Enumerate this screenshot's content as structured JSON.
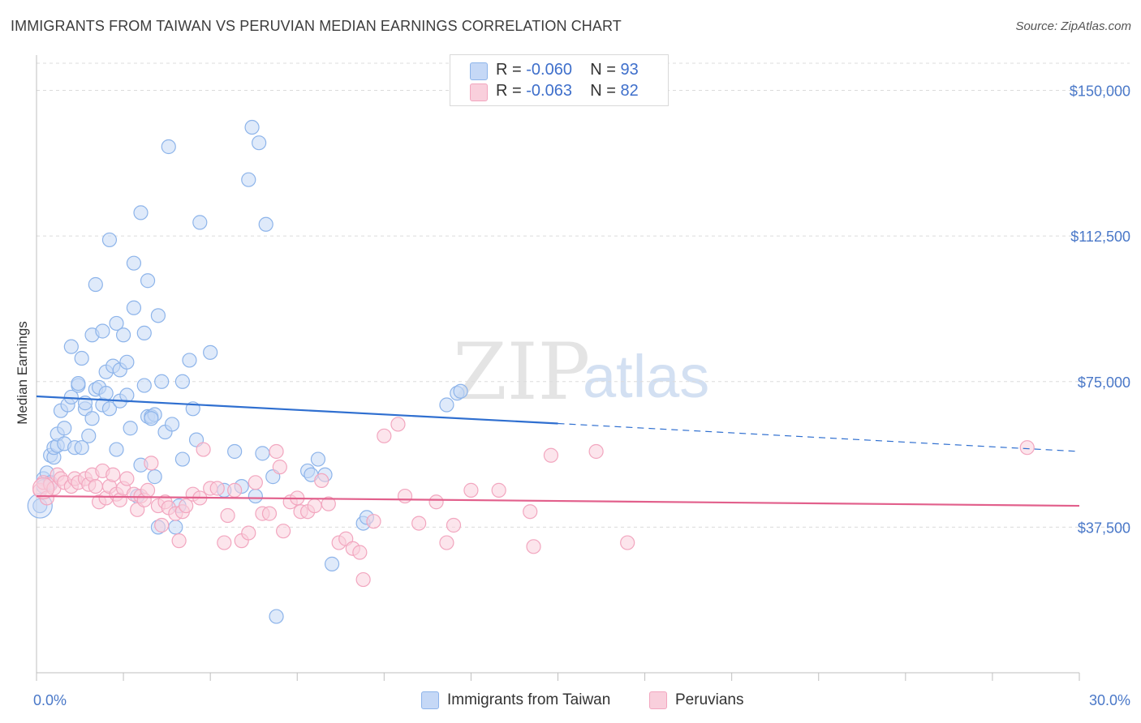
{
  "title": "IMMIGRANTS FROM TAIWAN VS PERUVIAN MEDIAN EARNINGS CORRELATION CHART",
  "source": "Source: ZipAtlas.com",
  "watermark": {
    "zip": "ZIP",
    "atlas": "atlas"
  },
  "legend_top": [
    {
      "r_label": "R =",
      "r_value": "-0.060",
      "n_label": "N =",
      "n_value": "93",
      "color": "#8db4ea",
      "fill": "#c5d8f6"
    },
    {
      "r_label": "R =",
      "r_value": "-0.063",
      "n_label": "N =",
      "n_value": "82",
      "color": "#f2a6bf",
      "fill": "#f9cfdc"
    }
  ],
  "legend_bottom": [
    {
      "label": "Immigrants from Taiwan",
      "color": "#8db4ea",
      "fill": "#c5d8f6"
    },
    {
      "label": "Peruvians",
      "color": "#f2a6bf",
      "fill": "#f9cfdc"
    }
  ],
  "chart_data": {
    "type": "scatter",
    "title": "IMMIGRANTS FROM TAIWAN VS PERUVIAN MEDIAN EARNINGS CORRELATION CHART",
    "xlabel": "",
    "ylabel": "Median Earnings",
    "xlim": [
      0,
      30
    ],
    "ylim": [
      0,
      157000
    ],
    "x_tick_labels": [
      "0.0%",
      "30.0%"
    ],
    "y_ticks": [
      37500,
      75000,
      112500,
      150000
    ],
    "y_tick_labels": [
      "$37,500",
      "$75,000",
      "$112,500",
      "$150,000"
    ],
    "grid": true,
    "legend_position": "top-center",
    "series": [
      {
        "name": "Immigrants from Taiwan",
        "color": "#8db4ea",
        "fill": "#c5d8f6",
        "line_color": "#2f6fd0",
        "trend": {
          "x0": 0,
          "y0": 71200,
          "x1": 15,
          "y1": 64200,
          "dash_to_x": 30,
          "dash_to_y": 57000
        },
        "points": [
          [
            0.1,
            43000
          ],
          [
            0.2,
            50000
          ],
          [
            0.2,
            48000
          ],
          [
            0.3,
            51500
          ],
          [
            0.4,
            56000
          ],
          [
            0.5,
            55500
          ],
          [
            0.5,
            58000
          ],
          [
            0.6,
            58500
          ],
          [
            0.6,
            61500
          ],
          [
            0.7,
            67500
          ],
          [
            0.8,
            63000
          ],
          [
            0.8,
            59000
          ],
          [
            0.9,
            69000
          ],
          [
            1.0,
            71000
          ],
          [
            1.0,
            84000
          ],
          [
            1.1,
            58000
          ],
          [
            1.2,
            74000
          ],
          [
            1.2,
            74500
          ],
          [
            1.3,
            81000
          ],
          [
            1.4,
            68000
          ],
          [
            1.4,
            69500
          ],
          [
            1.5,
            61000
          ],
          [
            1.6,
            87000
          ],
          [
            1.6,
            65500
          ],
          [
            1.7,
            100000
          ],
          [
            1.7,
            73000
          ],
          [
            1.8,
            73500
          ],
          [
            1.9,
            88000
          ],
          [
            1.9,
            69000
          ],
          [
            2.0,
            77500
          ],
          [
            2.0,
            72000
          ],
          [
            2.1,
            68000
          ],
          [
            2.1,
            111500
          ],
          [
            2.2,
            79000
          ],
          [
            2.3,
            90000
          ],
          [
            2.3,
            57500
          ],
          [
            2.4,
            70000
          ],
          [
            2.4,
            78000
          ],
          [
            2.5,
            87000
          ],
          [
            2.6,
            80000
          ],
          [
            2.6,
            71500
          ],
          [
            2.7,
            63000
          ],
          [
            2.8,
            105500
          ],
          [
            2.8,
            94000
          ],
          [
            2.9,
            45500
          ],
          [
            3.0,
            118500
          ],
          [
            3.0,
            53500
          ],
          [
            3.1,
            74000
          ],
          [
            3.1,
            87500
          ],
          [
            3.2,
            66000
          ],
          [
            3.2,
            101000
          ],
          [
            3.3,
            66000
          ],
          [
            3.4,
            66500
          ],
          [
            3.4,
            50500
          ],
          [
            3.5,
            37500
          ],
          [
            3.5,
            92000
          ],
          [
            3.6,
            75000
          ],
          [
            3.7,
            62000
          ],
          [
            3.8,
            135500
          ],
          [
            3.9,
            64000
          ],
          [
            4.0,
            37500
          ],
          [
            4.1,
            43000
          ],
          [
            4.2,
            55000
          ],
          [
            4.2,
            75000
          ],
          [
            4.4,
            80500
          ],
          [
            4.5,
            68000
          ],
          [
            4.6,
            60000
          ],
          [
            4.7,
            116000
          ],
          [
            5.0,
            82500
          ],
          [
            5.4,
            47000
          ],
          [
            5.7,
            57000
          ],
          [
            5.9,
            48000
          ],
          [
            6.1,
            127000
          ],
          [
            6.2,
            140500
          ],
          [
            6.3,
            45500
          ],
          [
            6.4,
            136500
          ],
          [
            6.5,
            56500
          ],
          [
            6.6,
            115500
          ],
          [
            6.8,
            50500
          ],
          [
            6.9,
            14500
          ],
          [
            7.8,
            52000
          ],
          [
            7.9,
            51000
          ],
          [
            8.1,
            55000
          ],
          [
            8.3,
            51000
          ],
          [
            8.5,
            28000
          ],
          [
            9.4,
            38500
          ],
          [
            9.5,
            40000
          ],
          [
            11.8,
            69000
          ],
          [
            12.1,
            72000
          ],
          [
            12.2,
            72500
          ],
          [
            3.3,
            65500
          ],
          [
            1.3,
            58000
          ],
          [
            0.4,
            49000
          ]
        ]
      },
      {
        "name": "Peruvians",
        "color": "#f2a6bf",
        "fill": "#f9cfdc",
        "line_color": "#e2608c",
        "trend": {
          "x0": 0,
          "y0": 45500,
          "x1": 30,
          "y1": 43000
        },
        "points": [
          [
            0.1,
            47000
          ],
          [
            0.2,
            49000
          ],
          [
            0.3,
            45000
          ],
          [
            0.4,
            48500
          ],
          [
            0.5,
            47500
          ],
          [
            0.6,
            51000
          ],
          [
            0.7,
            50000
          ],
          [
            0.8,
            49000
          ],
          [
            1.0,
            48000
          ],
          [
            1.1,
            50000
          ],
          [
            1.2,
            49000
          ],
          [
            1.4,
            50000
          ],
          [
            1.5,
            48500
          ],
          [
            1.6,
            51000
          ],
          [
            1.7,
            48000
          ],
          [
            1.8,
            44000
          ],
          [
            1.9,
            52000
          ],
          [
            2.0,
            45000
          ],
          [
            2.1,
            48000
          ],
          [
            2.2,
            51000
          ],
          [
            2.3,
            46000
          ],
          [
            2.4,
            44500
          ],
          [
            2.5,
            47500
          ],
          [
            2.6,
            50000
          ],
          [
            2.8,
            46000
          ],
          [
            2.9,
            42000
          ],
          [
            3.0,
            45500
          ],
          [
            3.1,
            44500
          ],
          [
            3.2,
            47000
          ],
          [
            3.3,
            54000
          ],
          [
            3.5,
            43000
          ],
          [
            3.6,
            38000
          ],
          [
            3.7,
            44000
          ],
          [
            3.8,
            42500
          ],
          [
            4.0,
            41000
          ],
          [
            4.1,
            34000
          ],
          [
            4.2,
            41500
          ],
          [
            4.3,
            43000
          ],
          [
            4.5,
            46000
          ],
          [
            4.7,
            45000
          ],
          [
            4.8,
            57500
          ],
          [
            5.0,
            47500
          ],
          [
            5.2,
            47500
          ],
          [
            5.4,
            33500
          ],
          [
            5.5,
            40500
          ],
          [
            5.7,
            47000
          ],
          [
            5.9,
            34000
          ],
          [
            6.1,
            36000
          ],
          [
            6.3,
            49000
          ],
          [
            6.5,
            41000
          ],
          [
            6.7,
            41000
          ],
          [
            6.9,
            57000
          ],
          [
            7.0,
            53000
          ],
          [
            7.1,
            36500
          ],
          [
            7.3,
            44000
          ],
          [
            7.5,
            45000
          ],
          [
            7.6,
            41500
          ],
          [
            7.8,
            41500
          ],
          [
            8.0,
            43000
          ],
          [
            8.2,
            49500
          ],
          [
            8.4,
            43500
          ],
          [
            8.7,
            33500
          ],
          [
            8.9,
            34500
          ],
          [
            9.1,
            32000
          ],
          [
            9.3,
            31000
          ],
          [
            9.4,
            24000
          ],
          [
            9.7,
            39000
          ],
          [
            10.0,
            61000
          ],
          [
            10.4,
            64000
          ],
          [
            10.6,
            45500
          ],
          [
            11.0,
            38500
          ],
          [
            11.5,
            44000
          ],
          [
            11.8,
            33500
          ],
          [
            12.0,
            38000
          ],
          [
            12.5,
            47000
          ],
          [
            13.3,
            47000
          ],
          [
            14.2,
            41500
          ],
          [
            14.3,
            32500
          ],
          [
            14.8,
            56000
          ],
          [
            16.1,
            57000
          ],
          [
            17.0,
            33500
          ],
          [
            28.5,
            58000
          ]
        ]
      }
    ]
  }
}
